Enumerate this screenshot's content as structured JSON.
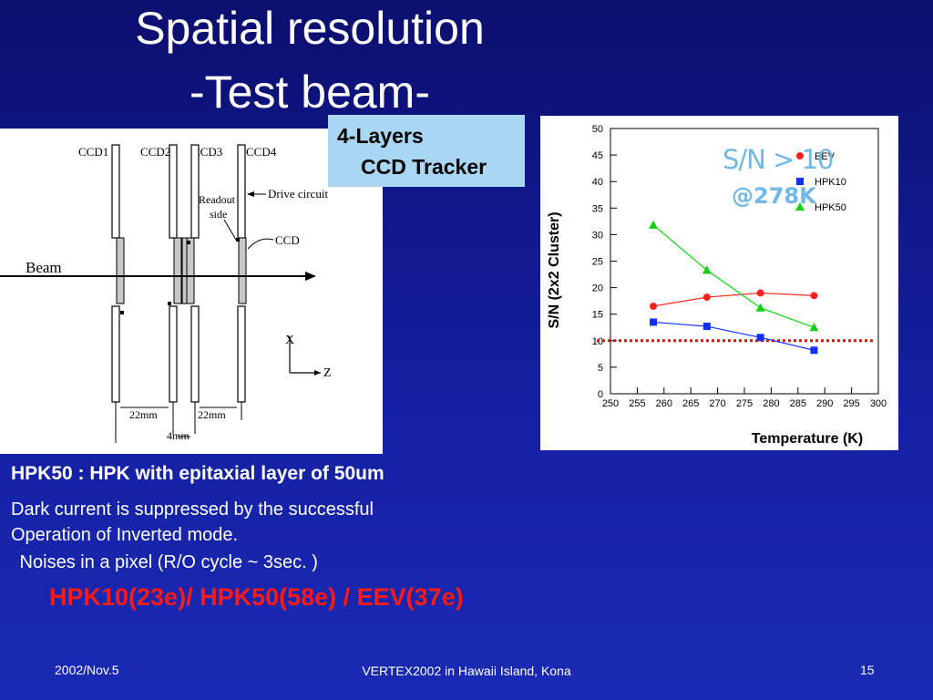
{
  "slide": {
    "title_line1": "Spatial resolution",
    "title_line2": "-Test beam-",
    "layers_line1": "4-Layers",
    "layers_line2": "CCD Tracker",
    "subheading": "HPK50 : HPK with epitaxial layer of 50um",
    "body_line1": "Dark current is suppressed by the successful",
    "body_line2": "Operation of Inverted mode.",
    "body_line3": " Noises in a pixel (R/O cycle ~ 3sec. )",
    "highlight": "HPK10(23e)/ HPK50(58e) / EEV(37e)",
    "footer_left": "2002/Nov.5",
    "footer_center": "VERTEX2002 in Hawaii Island, Kona",
    "footer_right": "15"
  },
  "diagram": {
    "ccd_labels": [
      "CCD1",
      "CCD2",
      "CCD3",
      "CCD4"
    ],
    "readout_line1": "Readout",
    "readout_line2": "side",
    "drive_circuit": "Drive circuit",
    "ccd": "CCD",
    "beam": "Beam",
    "axis_x": "X",
    "axis_z": "Z",
    "dim_left": "22mm",
    "dim_right": "22mm",
    "dim_gap": "4mm"
  },
  "chart_data": {
    "type": "line",
    "ylabel": "S/N (2x2 Cluster)",
    "xlabel": "Temperature (K)",
    "xlim": [
      250,
      300
    ],
    "ylim": [
      0,
      50
    ],
    "xticks": [
      250,
      255,
      260,
      265,
      270,
      275,
      280,
      285,
      290,
      295,
      300
    ],
    "yticks": [
      0,
      5,
      10,
      15,
      20,
      25,
      30,
      35,
      40,
      45,
      50
    ],
    "annotation_line1": "S/N > 10",
    "annotation_line2": "@278K",
    "threshold": 10,
    "legend_position": "top-right",
    "series": [
      {
        "name": "EEV",
        "color": "#ff2020",
        "marker": "circle",
        "points": [
          [
            258,
            16.5
          ],
          [
            268,
            18.2
          ],
          [
            278,
            19.0
          ],
          [
            288,
            18.5
          ]
        ]
      },
      {
        "name": "HPK10",
        "color": "#1030ff",
        "marker": "square",
        "points": [
          [
            258,
            13.5
          ],
          [
            268,
            12.7
          ],
          [
            278,
            10.6
          ],
          [
            288,
            8.2
          ]
        ]
      },
      {
        "name": "HPK50",
        "color": "#10d010",
        "marker": "triangle",
        "points": [
          [
            258,
            31.8
          ],
          [
            268,
            23.3
          ],
          [
            278,
            16.2
          ],
          [
            288,
            12.5
          ]
        ]
      }
    ]
  }
}
